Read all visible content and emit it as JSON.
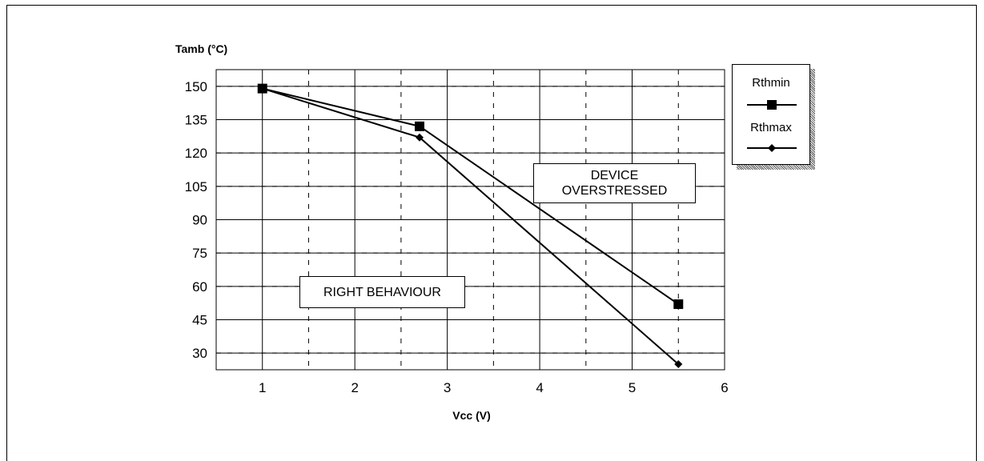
{
  "chart_data": {
    "type": "line",
    "ylabel": "Tamb (°C)",
    "xlabel": "Vcc (V)",
    "xlim": [
      0.5,
      6
    ],
    "ylim": [
      22.5,
      157.5
    ],
    "xticks": [
      1,
      2,
      3,
      4,
      5,
      6
    ],
    "yticks": [
      30,
      45,
      60,
      75,
      90,
      105,
      120,
      135,
      150
    ],
    "grid": true,
    "legend_position": "right",
    "series": [
      {
        "name": "Rthmin",
        "marker": "square",
        "color": "#000000",
        "x": [
          1,
          2.7,
          5.5
        ],
        "y": [
          149,
          132,
          52
        ]
      },
      {
        "name": "Rthmax",
        "marker": "diamond",
        "color": "#000000",
        "x": [
          1,
          2.7,
          5.5
        ],
        "y": [
          149,
          127,
          25
        ]
      }
    ],
    "annotations": [
      {
        "id": "overstressed",
        "lines": [
          "DEVICE",
          "OVERSTRESSED"
        ]
      },
      {
        "id": "right",
        "lines": [
          "RIGHT BEHAVIOUR"
        ]
      }
    ]
  }
}
